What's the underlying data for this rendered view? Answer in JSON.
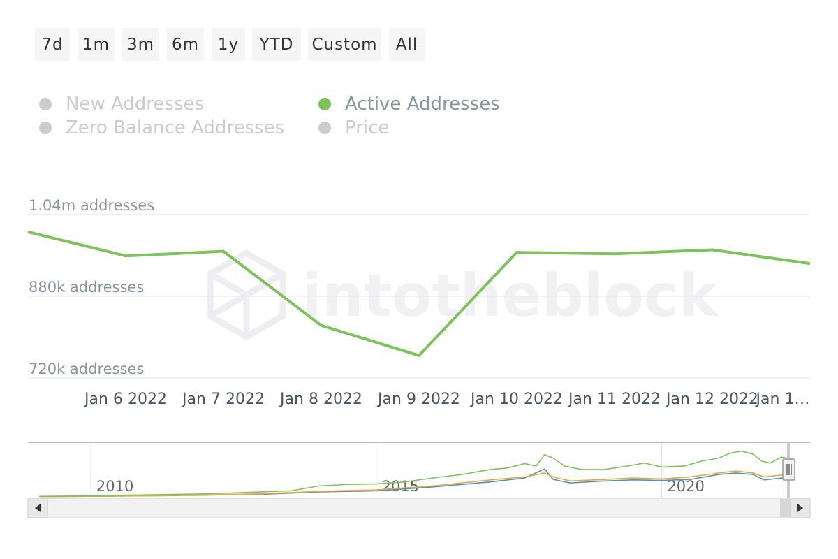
{
  "range_selector": {
    "buttons": [
      "7d",
      "1m",
      "3m",
      "6m",
      "1y",
      "YTD",
      "Custom",
      "All"
    ]
  },
  "legend": {
    "items": [
      {
        "label": "New Addresses",
        "active": false
      },
      {
        "label": "Active Addresses",
        "active": true
      },
      {
        "label": "Zero Balance Addresses",
        "active": false
      },
      {
        "label": "Price",
        "active": false
      }
    ]
  },
  "colors": {
    "active_addresses": "#7cc45a",
    "new_addresses": "#4a90d9",
    "zero_balance_addresses": "#f5a623",
    "gridline": "#e6e6e6",
    "inactive": "#cccccc"
  },
  "watermark": {
    "text": "intotheblock"
  },
  "chart_data": {
    "type": "line",
    "title": "",
    "xlabel": "",
    "ylabel": "",
    "y_ticks": [
      "720k addresses",
      "880k addresses",
      "1.04m addresses"
    ],
    "y_tick_values": [
      720000,
      880000,
      1040000
    ],
    "ylim": [
      720000,
      1040000
    ],
    "x_tick_labels": [
      "Jan 6 2022",
      "Jan 7 2022",
      "Jan 8 2022",
      "Jan 9 2022",
      "Jan 10 2022",
      "Jan 11 2022",
      "Jan 12 2022",
      "Jan 1…"
    ],
    "x": [
      "2022-01-05",
      "2022-01-06",
      "2022-01-07",
      "2022-01-08",
      "2022-01-09",
      "2022-01-10",
      "2022-01-11",
      "2022-01-12",
      "2022-01-13"
    ],
    "series": [
      {
        "name": "Active Addresses",
        "values": [
          1006000,
          959000,
          968000,
          823000,
          764000,
          966000,
          963000,
          971000,
          944000
        ]
      }
    ],
    "grid": true,
    "legend_position": "top"
  },
  "navigator": {
    "year_labels": [
      "2010",
      "2015",
      "2020"
    ],
    "year_values": [
      2010,
      2015,
      2020
    ],
    "x_range": [
      2008.9,
      2022.6
    ],
    "series": {
      "active": [
        [
          2009.1,
          0.01
        ],
        [
          2010,
          0.02
        ],
        [
          2011,
          0.04
        ],
        [
          2012,
          0.06
        ],
        [
          2013,
          0.1
        ],
        [
          2013.5,
          0.12
        ],
        [
          2014,
          0.22
        ],
        [
          2014.5,
          0.25
        ],
        [
          2015,
          0.26
        ],
        [
          2015.5,
          0.3
        ],
        [
          2016,
          0.38
        ],
        [
          2016.5,
          0.45
        ],
        [
          2017,
          0.55
        ],
        [
          2017.3,
          0.58
        ],
        [
          2017.6,
          0.67
        ],
        [
          2017.8,
          0.62
        ],
        [
          2017.95,
          0.85
        ],
        [
          2018.1,
          0.78
        ],
        [
          2018.3,
          0.62
        ],
        [
          2018.6,
          0.55
        ],
        [
          2019,
          0.55
        ],
        [
          2019.4,
          0.62
        ],
        [
          2019.7,
          0.68
        ],
        [
          2020,
          0.6
        ],
        [
          2020.4,
          0.62
        ],
        [
          2020.7,
          0.72
        ],
        [
          2021,
          0.78
        ],
        [
          2021.2,
          0.88
        ],
        [
          2021.4,
          0.92
        ],
        [
          2021.6,
          0.86
        ],
        [
          2021.75,
          0.72
        ],
        [
          2021.9,
          0.68
        ],
        [
          2022.1,
          0.8
        ],
        [
          2022.3,
          0.75
        ]
      ],
      "new": [
        [
          2009.1,
          0.005
        ],
        [
          2011,
          0.02
        ],
        [
          2013,
          0.05
        ],
        [
          2014,
          0.1
        ],
        [
          2015,
          0.12
        ],
        [
          2016,
          0.2
        ],
        [
          2017,
          0.3
        ],
        [
          2017.6,
          0.38
        ],
        [
          2017.95,
          0.56
        ],
        [
          2018.1,
          0.35
        ],
        [
          2018.4,
          0.28
        ],
        [
          2019,
          0.32
        ],
        [
          2019.5,
          0.34
        ],
        [
          2020,
          0.33
        ],
        [
          2020.5,
          0.35
        ],
        [
          2021,
          0.45
        ],
        [
          2021.3,
          0.48
        ],
        [
          2021.6,
          0.45
        ],
        [
          2021.8,
          0.34
        ],
        [
          2022.1,
          0.38
        ],
        [
          2022.3,
          0.4
        ]
      ],
      "zero": [
        [
          2009.1,
          0.005
        ],
        [
          2011,
          0.02
        ],
        [
          2013,
          0.06
        ],
        [
          2014,
          0.11
        ],
        [
          2015,
          0.14
        ],
        [
          2016,
          0.22
        ],
        [
          2017,
          0.34
        ],
        [
          2017.6,
          0.4
        ],
        [
          2017.95,
          0.48
        ],
        [
          2018.1,
          0.4
        ],
        [
          2018.4,
          0.32
        ],
        [
          2019,
          0.35
        ],
        [
          2019.5,
          0.38
        ],
        [
          2020,
          0.36
        ],
        [
          2020.5,
          0.4
        ],
        [
          2021,
          0.48
        ],
        [
          2021.3,
          0.52
        ],
        [
          2021.6,
          0.48
        ],
        [
          2021.8,
          0.4
        ],
        [
          2022.1,
          0.44
        ],
        [
          2022.3,
          0.42
        ]
      ]
    }
  },
  "scrollbar": {
    "left_arrow": "◂",
    "right_arrow": "▸",
    "handle_icon": "|||"
  }
}
